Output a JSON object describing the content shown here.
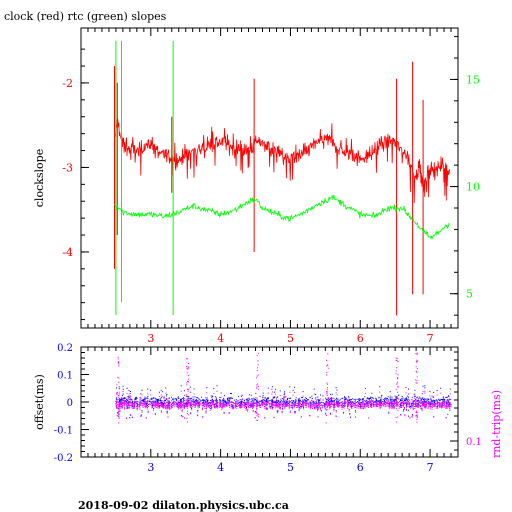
{
  "footer": "2018-09-02  dilaton.physics.ubc.ca",
  "chart_data": [
    {
      "type": "line",
      "title": "clock (red) rtc (green) slopes",
      "xlabel": "",
      "ylabel": "clockslope",
      "ylabel_right": "",
      "xlim": [
        2.0,
        7.4
      ],
      "ylim": [
        -4.9,
        -1.35
      ],
      "ylim_right": [
        3.4,
        17.4
      ],
      "x_ticks": [
        3,
        4,
        5,
        6,
        7
      ],
      "x_tick_labels": [
        "3",
        "4",
        "5",
        "6",
        "7"
      ],
      "y_ticks": [
        -2,
        -3,
        -4
      ],
      "y_tick_labels": [
        "-2",
        "-3",
        "-4"
      ],
      "y_ticks_right": [
        15,
        10,
        5
      ],
      "y_tick_labels_right": [
        "15",
        "10",
        "5"
      ],
      "colors": {
        "left_axis": "#ff0000",
        "right_axis": "#00ff00",
        "x_axis": "#ff0000"
      },
      "series": [
        {
          "color": "#ff0000",
          "axis": "left",
          "x": [
            2.48,
            2.52,
            2.56,
            2.6,
            2.7,
            2.8,
            2.9,
            3.0,
            3.1,
            3.2,
            3.3,
            3.4,
            3.5,
            3.6,
            3.7,
            3.8,
            3.9,
            4.0,
            4.1,
            4.2,
            4.3,
            4.4,
            4.5,
            4.6,
            4.7,
            4.8,
            4.9,
            5.0,
            5.1,
            5.2,
            5.3,
            5.4,
            5.5,
            5.6,
            5.7,
            5.8,
            5.9,
            6.0,
            6.1,
            6.2,
            6.3,
            6.4,
            6.5,
            6.6,
            6.7,
            6.75,
            6.8,
            6.85,
            6.9,
            7.0,
            7.1,
            7.2,
            7.28
          ],
          "y": [
            -2.7,
            -2.45,
            -2.6,
            -2.75,
            -2.78,
            -2.8,
            -2.75,
            -2.72,
            -2.8,
            -2.85,
            -2.88,
            -2.9,
            -2.85,
            -2.8,
            -2.78,
            -2.75,
            -2.72,
            -2.7,
            -2.73,
            -2.78,
            -2.8,
            -2.78,
            -2.72,
            -2.7,
            -2.75,
            -2.82,
            -2.88,
            -2.9,
            -2.88,
            -2.82,
            -2.75,
            -2.7,
            -2.65,
            -2.7,
            -2.78,
            -2.82,
            -2.85,
            -2.9,
            -2.88,
            -2.8,
            -2.72,
            -2.68,
            -2.7,
            -2.8,
            -2.9,
            -3.05,
            -3.1,
            -3.0,
            -3.2,
            -3.05,
            -3.0,
            -2.98,
            -3.05
          ],
          "spikes": [
            {
              "x": 2.48,
              "ymin": -4.2,
              "ymax": -1.8
            },
            {
              "x": 2.52,
              "ymin": -3.8,
              "ymax": -2.0
            },
            {
              "x": 3.3,
              "ymin": -3.3,
              "ymax": -2.4
            },
            {
              "x": 4.48,
              "ymin": -4.0,
              "ymax": -1.95
            },
            {
              "x": 6.52,
              "ymin": -4.75,
              "ymax": -1.95
            },
            {
              "x": 6.75,
              "ymin": -4.5,
              "ymax": -1.75
            },
            {
              "x": 6.9,
              "ymin": -4.5,
              "ymax": -2.2
            }
          ]
        },
        {
          "color": "#00ff00",
          "axis": "right",
          "x": [
            2.48,
            2.55,
            2.6,
            2.8,
            3.0,
            3.2,
            3.4,
            3.6,
            3.8,
            4.0,
            4.2,
            4.4,
            4.5,
            4.6,
            4.8,
            5.0,
            5.2,
            5.4,
            5.6,
            5.8,
            6.0,
            6.2,
            6.4,
            6.6,
            6.8,
            6.9,
            7.0,
            7.1,
            7.2,
            7.28
          ],
          "y": [
            9.2,
            9.0,
            8.8,
            8.7,
            8.7,
            8.6,
            8.8,
            9.1,
            8.9,
            8.7,
            8.9,
            9.3,
            9.4,
            9.0,
            8.7,
            8.5,
            8.8,
            9.2,
            9.5,
            9.1,
            8.7,
            8.6,
            9.0,
            9.0,
            8.3,
            7.9,
            7.6,
            7.8,
            8.1,
            8.3
          ],
          "spikes": [
            {
              "x": 2.5,
              "ymin": 4.0,
              "ymax": 16.8
            },
            {
              "x": 2.58,
              "ymin": 4.6,
              "ymax": 16.8
            },
            {
              "x": 3.32,
              "ymin": 4.0,
              "ymax": 16.8
            }
          ]
        }
      ]
    },
    {
      "type": "scatter",
      "title": "",
      "xlabel": "",
      "ylabel": "offset(ms)",
      "ylabel_right": "rnd-trip(ms)",
      "xlim": [
        2.0,
        7.4
      ],
      "ylim": [
        -0.2,
        0.2
      ],
      "x_ticks": [
        3,
        4,
        5,
        6,
        7
      ],
      "x_tick_labels": [
        "3",
        "4",
        "5",
        "6",
        "7"
      ],
      "y_ticks": [
        0.2,
        0.1,
        0,
        -0.1,
        -0.2
      ],
      "y_tick_labels": [
        "0.2",
        "0.1",
        "0",
        "-0.1",
        "-0.2"
      ],
      "y_ticks_right": [
        0.1
      ],
      "y_tick_labels_right": [
        "0.1"
      ],
      "colors": {
        "left_axis": "#0000ff",
        "right_axis": "#ff00ff",
        "x_axis": "#0000ff"
      },
      "series": [
        {
          "color": "#0000ff",
          "x_range": [
            2.48,
            7.3
          ],
          "center": 0.0,
          "spread": 0.02,
          "outlier_spread": 0.06
        },
        {
          "color": "#ff00ff",
          "x_range": [
            2.48,
            7.3
          ],
          "center": -0.01,
          "spread": 0.015,
          "outlier_spread": 0.05,
          "spikes_x": [
            2.52,
            3.52,
            4.52,
            5.52,
            6.52,
            6.8
          ]
        }
      ]
    }
  ]
}
